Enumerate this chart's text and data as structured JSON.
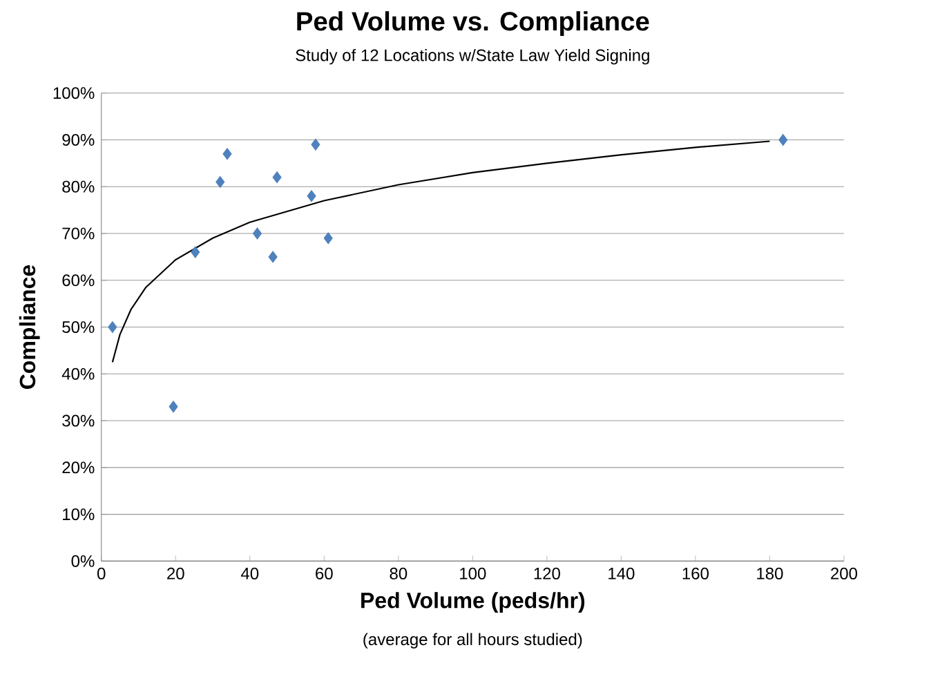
{
  "chart_data": {
    "type": "scatter",
    "title": "Ped Volume vs. Compliance",
    "subtitle": "Study of 12 Locations w/State Law Yield Signing",
    "xlabel": "Ped Volume (peds/hr)",
    "ylabel": "Compliance",
    "annotations": [
      "(average for all hours studied)"
    ],
    "xlim": [
      0,
      200
    ],
    "xticks": [
      0,
      20,
      40,
      60,
      80,
      100,
      120,
      140,
      160,
      180,
      200
    ],
    "ylim": [
      0,
      100
    ],
    "yticks": [
      {
        "value": 0,
        "label": "0%"
      },
      {
        "value": 10,
        "label": "10%"
      },
      {
        "value": 20,
        "label": "20%"
      },
      {
        "value": 30,
        "label": "30%"
      },
      {
        "value": 40,
        "label": "40%"
      },
      {
        "value": 50,
        "label": "50%"
      },
      {
        "value": 60,
        "label": "60%"
      },
      {
        "value": 70,
        "label": "70%"
      },
      {
        "value": 80,
        "label": "80%"
      },
      {
        "value": 90,
        "label": "90%"
      },
      {
        "value": 100,
        "label": "100%"
      }
    ],
    "grid": "y",
    "series": [
      {
        "marker": "diamond",
        "color": "#4f81bd",
        "x": [
          3,
          19.4,
          25.3,
          32,
          33.9,
          42,
          46.2,
          47.3,
          57.7,
          56.6,
          61.1,
          183.6
        ],
        "values": [
          50,
          33,
          66,
          81,
          87,
          70,
          65,
          82,
          89,
          78,
          69,
          90
        ]
      },
      {
        "type": "line",
        "marker": "none",
        "line_style": "solid",
        "color": "#000000",
        "x": [
          3,
          5,
          8,
          12,
          20,
          30,
          40,
          60,
          80,
          100,
          120,
          140,
          160,
          180
        ],
        "values": [
          42.5,
          48.4,
          53.8,
          58.5,
          64.4,
          69.0,
          72.4,
          77.0,
          80.4,
          83.0,
          85.0,
          86.8,
          88.4,
          89.7
        ]
      }
    ]
  }
}
